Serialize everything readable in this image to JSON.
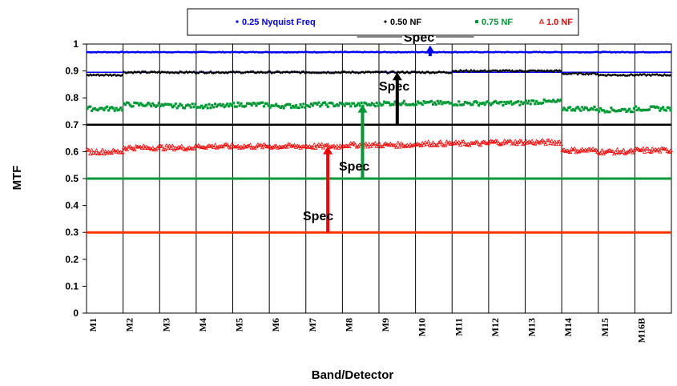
{
  "chart_data": {
    "type": "scatter",
    "title": "",
    "xlabel": "Band/Detector",
    "ylabel": "MTF",
    "ylim": [
      0,
      1
    ],
    "y_ticks": [
      "0",
      "0.1",
      "0.2",
      "0.3",
      "0.4",
      "0.5",
      "0.6",
      "0.7",
      "0.8",
      "0.9",
      "1"
    ],
    "categories": [
      "M1",
      "M2",
      "M3",
      "M4",
      "M5",
      "M6",
      "M7",
      "M8",
      "M9",
      "M10",
      "M11",
      "M12",
      "M13",
      "M14",
      "M15",
      "M16B"
    ],
    "grid": "vertical lines at band boundaries",
    "legend_position": "top",
    "series": [
      {
        "name": "0.25 Nyquist Freq",
        "color": "#0000ff",
        "marker": "circle",
        "band_values": [
          0.97,
          0.97,
          0.97,
          0.97,
          0.97,
          0.97,
          0.97,
          0.97,
          0.97,
          0.97,
          0.97,
          0.97,
          0.97,
          0.97,
          0.97,
          0.97
        ]
      },
      {
        "name": "0.50 NF",
        "color": "#000000",
        "marker": "diamond",
        "band_values": [
          0.885,
          0.895,
          0.895,
          0.895,
          0.895,
          0.895,
          0.895,
          0.895,
          0.895,
          0.895,
          0.9,
          0.9,
          0.9,
          0.89,
          0.885,
          0.885
        ]
      },
      {
        "name": "0.75 NF",
        "color": "#009933",
        "marker": "square",
        "band_values": [
          0.76,
          0.775,
          0.77,
          0.77,
          0.775,
          0.77,
          0.775,
          0.775,
          0.78,
          0.78,
          0.78,
          0.78,
          0.785,
          0.76,
          0.755,
          0.76
        ]
      },
      {
        "name": "1.0 NF",
        "color": "#ff0000",
        "marker": "triangle",
        "band_values": [
          0.6,
          0.615,
          0.615,
          0.62,
          0.62,
          0.62,
          0.62,
          0.625,
          0.625,
          0.63,
          0.63,
          0.635,
          0.635,
          0.605,
          0.6,
          0.605
        ]
      }
    ],
    "spec_lines": [
      {
        "label": "Spec",
        "value": 0.99,
        "color": "#000000",
        "arrow_color": "#0000ff",
        "arrow_from": 0.97,
        "arrow_at_band": 9.4
      },
      {
        "label": "Spec",
        "value": 0.7,
        "color": "#000000",
        "arrow_color": "#000000",
        "arrow_from": 0.7,
        "arrow_to": 0.895,
        "arrow_at_band": 8.5
      },
      {
        "label": "Spec",
        "value": 0.5,
        "color": "#009933",
        "arrow_color": "#009933",
        "arrow_from": 0.5,
        "arrow_to": 0.775,
        "arrow_at_band": 7.55
      },
      {
        "label": "Spec",
        "value": 0.3,
        "color": "#ff3300",
        "arrow_color": "#ff0000",
        "arrow_from": 0.3,
        "arrow_to": 0.62,
        "arrow_at_band": 6.6
      }
    ]
  }
}
